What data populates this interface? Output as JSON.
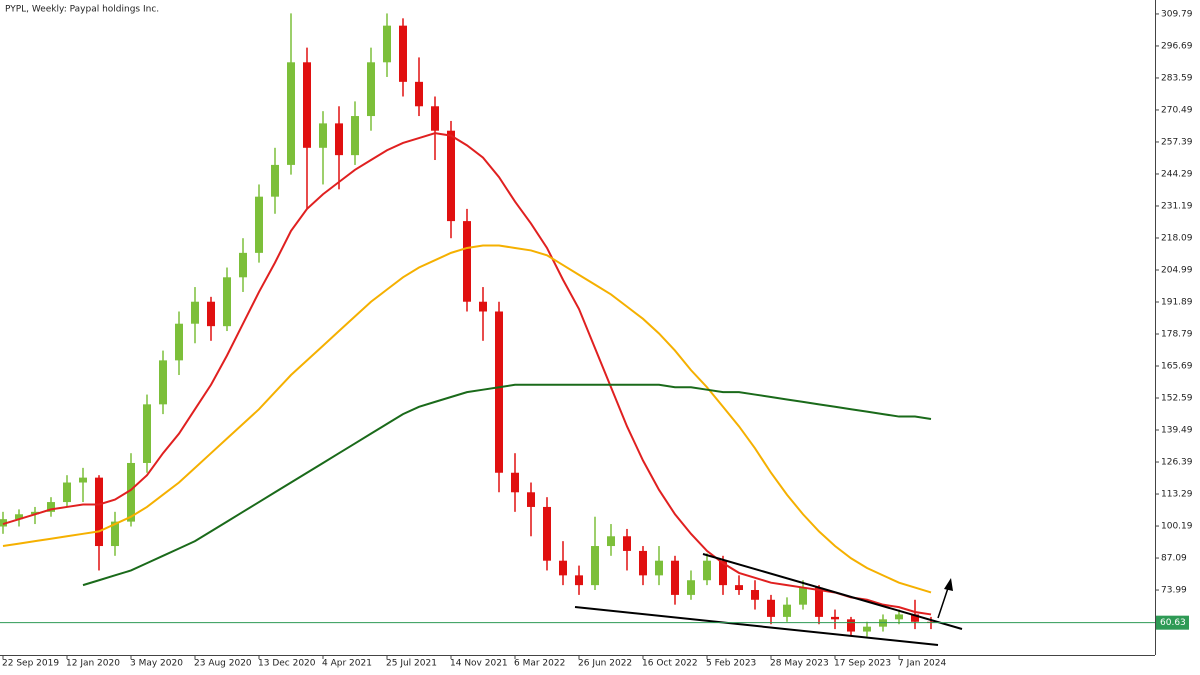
{
  "chart_data": {
    "type": "candlestick",
    "title": "PYPL, Weekly:  Paypal holdings Inc.",
    "categories": [
      "22 Sep 2019",
      null,
      null,
      null,
      "12 Jan 2020",
      null,
      null,
      null,
      "3 May 2020",
      null,
      null,
      null,
      "23 Aug 2020",
      null,
      null,
      null,
      "13 Dec 2020",
      null,
      null,
      null,
      "4 Apr 2021",
      null,
      null,
      null,
      "25 Jul 2021",
      null,
      null,
      null,
      "14 Nov 2021",
      null,
      null,
      null,
      "6 Mar 2022",
      null,
      null,
      null,
      "26 Jun 2022",
      null,
      null,
      null,
      "16 Oct 2022",
      null,
      null,
      null,
      "5 Feb 2023",
      null,
      null,
      null,
      "28 May 2023",
      null,
      null,
      null,
      "17 Sep 2023",
      null,
      null,
      null,
      "7 Jan 2024",
      null,
      null
    ],
    "open": [
      100,
      103,
      105,
      106,
      110,
      118,
      120,
      92,
      102,
      126,
      150,
      168,
      183,
      192,
      182,
      202,
      212,
      235,
      248,
      290,
      255,
      265,
      252,
      268,
      290,
      305,
      282,
      272,
      262,
      225,
      192,
      188,
      122,
      114,
      108,
      86,
      80,
      76,
      92,
      96,
      90,
      80,
      86,
      72,
      78,
      86,
      76,
      74,
      70,
      63,
      68,
      75,
      63,
      62,
      57,
      59,
      62,
      64,
      61
    ],
    "high": [
      106,
      107,
      108,
      112,
      121,
      124,
      121,
      106,
      130,
      154,
      172,
      188,
      198,
      194,
      206,
      218,
      240,
      255,
      310,
      296,
      270,
      272,
      274,
      296,
      310,
      308,
      292,
      276,
      266,
      230,
      198,
      192,
      130,
      118,
      112,
      94,
      84,
      104,
      101,
      99,
      92,
      92,
      88,
      82,
      89,
      88,
      80,
      78,
      72,
      71,
      78,
      76,
      66,
      63,
      61,
      64,
      66,
      70,
      63
    ],
    "low": [
      97,
      100,
      101,
      104,
      108,
      110,
      82,
      88,
      100,
      122,
      146,
      162,
      175,
      176,
      180,
      196,
      208,
      228,
      244,
      230,
      240,
      238,
      248,
      262,
      284,
      276,
      268,
      250,
      218,
      188,
      176,
      114,
      106,
      96,
      82,
      76,
      72,
      74,
      88,
      82,
      76,
      76,
      68,
      70,
      76,
      72,
      72,
      66,
      60,
      61,
      66,
      60,
      58,
      55,
      55,
      57,
      60,
      58,
      58
    ],
    "close": [
      103,
      105,
      106,
      110,
      118,
      120,
      92,
      102,
      126,
      150,
      168,
      183,
      192,
      182,
      202,
      212,
      235,
      248,
      290,
      255,
      265,
      252,
      268,
      290,
      305,
      282,
      272,
      262,
      225,
      192,
      188,
      122,
      114,
      108,
      86,
      80,
      76,
      92,
      96,
      90,
      80,
      86,
      72,
      78,
      86,
      76,
      74,
      70,
      63,
      68,
      75,
      63,
      62,
      57,
      59,
      62,
      64,
      61,
      60.63
    ],
    "up_color": "#7cbf3a",
    "down_color": "#e01010",
    "series": [
      {
        "color": "#e02020",
        "values": [
          101,
          103,
          105,
          107,
          108,
          109,
          109,
          111,
          115,
          121,
          130,
          138,
          148,
          158,
          170,
          183,
          196,
          208,
          221,
          230,
          236,
          241,
          246,
          250,
          254,
          257,
          259,
          261,
          260,
          256,
          251,
          243,
          233,
          224,
          214,
          201,
          189,
          173,
          157,
          141,
          127,
          115,
          105,
          97,
          90,
          85,
          81,
          79,
          77,
          76,
          75,
          74,
          73,
          71,
          70,
          68,
          67,
          65,
          64
        ]
      },
      {
        "color": "#f5b000",
        "values": [
          92,
          93,
          94,
          95,
          96,
          97,
          98,
          101,
          104,
          108,
          113,
          118,
          124,
          130,
          136,
          142,
          148,
          155,
          162,
          168,
          174,
          180,
          186,
          192,
          197,
          202,
          206,
          209,
          212,
          214,
          215,
          215,
          214,
          213,
          211,
          207,
          203,
          199,
          195,
          190,
          185,
          179,
          172,
          164,
          157,
          149,
          141,
          132,
          122,
          113,
          105,
          98,
          92,
          87,
          83,
          80,
          77,
          75,
          73
        ]
      },
      {
        "color": "#1a6a1a",
        "values": [
          null,
          null,
          null,
          null,
          null,
          76,
          78,
          80,
          82,
          85,
          88,
          91,
          94,
          98,
          102,
          106,
          110,
          114,
          118,
          122,
          126,
          130,
          134,
          138,
          142,
          146,
          149,
          151,
          153,
          155,
          156,
          157,
          158,
          158,
          158,
          158,
          158,
          158,
          158,
          158,
          158,
          158,
          157,
          157,
          156,
          155,
          155,
          154,
          153,
          152,
          151,
          150,
          149,
          148,
          147,
          146,
          145,
          145,
          144
        ]
      }
    ],
    "ylim": [
      47.4,
      315.5
    ],
    "yticks": [
      309.79,
      296.69,
      283.59,
      270.49,
      257.39,
      244.29,
      231.19,
      218.09,
      204.99,
      191.89,
      178.79,
      165.69,
      152.59,
      139.49,
      126.39,
      113.29,
      100.19,
      87.09,
      73.99
    ],
    "last_price": 60.63,
    "last_price_color": "#2e9a55"
  }
}
